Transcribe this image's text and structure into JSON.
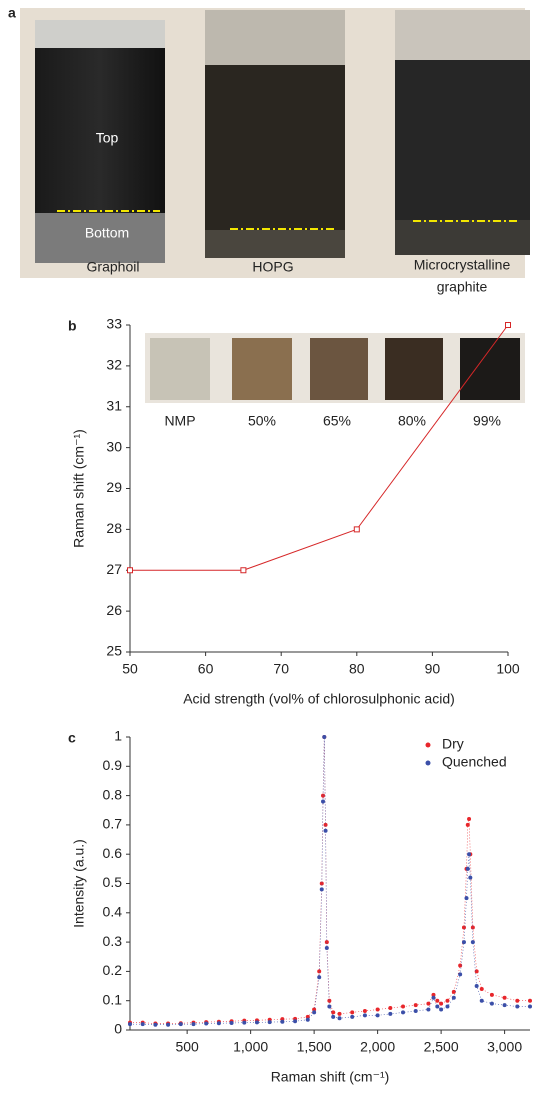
{
  "panel_a": {
    "label": "a",
    "annotations": [
      "Top",
      "Bottom"
    ],
    "vial_labels": [
      "Graphoil",
      "HOPG",
      [
        "Microcrystalline",
        "graphite"
      ]
    ]
  },
  "chart_data": [
    {
      "type": "line",
      "panel_label": "b",
      "inset_labels": [
        "NMP",
        "50%",
        "65%",
        "80%",
        "99%"
      ],
      "x_label": "Acid strength (vol% of chlorosulphonic acid)",
      "y_label": "Raman shift (cm⁻¹)",
      "x": [
        50,
        65,
        80,
        100
      ],
      "values": [
        27,
        27,
        28,
        33
      ],
      "color": "#d62728",
      "xlim": [
        50,
        100
      ],
      "xticks": [
        50,
        60,
        70,
        80,
        90,
        100
      ],
      "ylim": [
        25,
        33
      ],
      "yticks": [
        25,
        26,
        27,
        28,
        29,
        30,
        31,
        32,
        33
      ]
    },
    {
      "type": "scatter",
      "panel_label": "c",
      "x_label": "Raman shift (cm⁻¹)",
      "y_label": "Intensity (a.u.)",
      "legend": "upper right",
      "x": [
        50,
        150,
        250,
        350,
        450,
        550,
        650,
        750,
        850,
        950,
        1050,
        1150,
        1250,
        1350,
        1450,
        1500,
        1540,
        1560,
        1570,
        1580,
        1590,
        1600,
        1620,
        1650,
        1700,
        1800,
        1900,
        2000,
        2100,
        2200,
        2300,
        2400,
        2440,
        2470,
        2500,
        2550,
        2600,
        2650,
        2680,
        2700,
        2710,
        2720,
        2730,
        2750,
        2780,
        2820,
        2900,
        3000,
        3100,
        3200
      ],
      "series": [
        {
          "name": "Dry",
          "color": "#e8262b",
          "values": [
            0.025,
            0.025,
            0.022,
            0.022,
            0.023,
            0.025,
            0.027,
            0.028,
            0.03,
            0.032,
            0.033,
            0.035,
            0.037,
            0.038,
            0.045,
            0.07,
            0.2,
            0.5,
            0.8,
            1.0,
            0.7,
            0.3,
            0.1,
            0.06,
            0.055,
            0.06,
            0.065,
            0.07,
            0.075,
            0.08,
            0.085,
            0.09,
            0.12,
            0.1,
            0.09,
            0.1,
            0.13,
            0.22,
            0.35,
            0.55,
            0.7,
            0.72,
            0.6,
            0.35,
            0.2,
            0.14,
            0.12,
            0.11,
            0.1,
            0.1
          ]
        },
        {
          "name": "Quenched",
          "color": "#3b4fa8",
          "values": [
            0.02,
            0.02,
            0.018,
            0.018,
            0.02,
            0.02,
            0.022,
            0.023,
            0.024,
            0.025,
            0.026,
            0.027,
            0.028,
            0.03,
            0.035,
            0.06,
            0.18,
            0.48,
            0.78,
            1.0,
            0.68,
            0.28,
            0.08,
            0.045,
            0.04,
            0.045,
            0.05,
            0.05,
            0.055,
            0.06,
            0.065,
            0.07,
            0.11,
            0.08,
            0.07,
            0.08,
            0.11,
            0.19,
            0.3,
            0.45,
            0.55,
            0.6,
            0.52,
            0.3,
            0.15,
            0.1,
            0.09,
            0.085,
            0.08,
            0.08
          ]
        }
      ],
      "xlim": [
        50,
        3200
      ],
      "xticks": [
        500,
        {
          "value": 1000,
          "label": "1,000"
        },
        {
          "value": 1500,
          "label": "1,500"
        },
        {
          "value": 2000,
          "label": "2,000"
        },
        {
          "value": 2500,
          "label": "2,500"
        },
        {
          "value": 3000,
          "label": "3,000"
        }
      ],
      "ylim": [
        0,
        1
      ],
      "yticks": [
        0,
        0.1,
        0.2,
        0.3,
        0.4,
        0.5,
        0.6,
        0.7,
        0.8,
        0.9,
        1
      ]
    }
  ]
}
